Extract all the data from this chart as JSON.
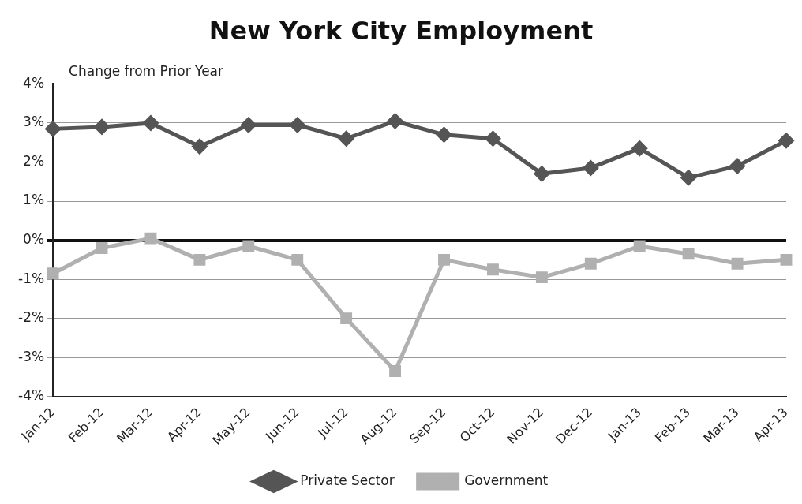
{
  "chart_data": {
    "type": "line",
    "title": "New York City Employment",
    "ylabel": "Change from Prior Year",
    "categories": [
      "Jan-12",
      "Feb-12",
      "Mar-12",
      "Apr-12",
      "May-12",
      "Jun-12",
      "Jul-12",
      "Aug-12",
      "Sep-12",
      "Oct-12",
      "Nov-12",
      "Dec-12",
      "Jan-13",
      "Feb-13",
      "Mar-13",
      "Apr-13"
    ],
    "series": [
      {
        "name": "Private Sector",
        "color": "#555555",
        "marker": "diamond",
        "values": [
          2.85,
          2.9,
          3.0,
          2.4,
          2.95,
          2.95,
          2.6,
          3.05,
          2.7,
          2.6,
          1.7,
          1.85,
          2.35,
          1.6,
          1.9,
          2.55
        ]
      },
      {
        "name": "Government",
        "color": "#b0b0b0",
        "marker": "square",
        "values": [
          -0.85,
          -0.2,
          0.05,
          -0.5,
          -0.15,
          -0.5,
          -2.0,
          -3.35,
          -0.5,
          -0.75,
          -0.95,
          -0.6,
          -0.15,
          -0.35,
          -0.6,
          -0.5
        ]
      }
    ],
    "ylim": [
      -4,
      4
    ],
    "yticks": [
      {
        "value": -4,
        "label": "-4%"
      },
      {
        "value": -3,
        "label": "-3%"
      },
      {
        "value": -2,
        "label": "-2%"
      },
      {
        "value": -1,
        "label": "-1%"
      },
      {
        "value": 0,
        "label": "0%"
      },
      {
        "value": 1,
        "label": "1%"
      },
      {
        "value": 2,
        "label": "2%"
      },
      {
        "value": 3,
        "label": "3%"
      },
      {
        "value": 4,
        "label": "4%"
      }
    ],
    "grid": "y",
    "legend": "bottom",
    "line_style": "solid"
  }
}
